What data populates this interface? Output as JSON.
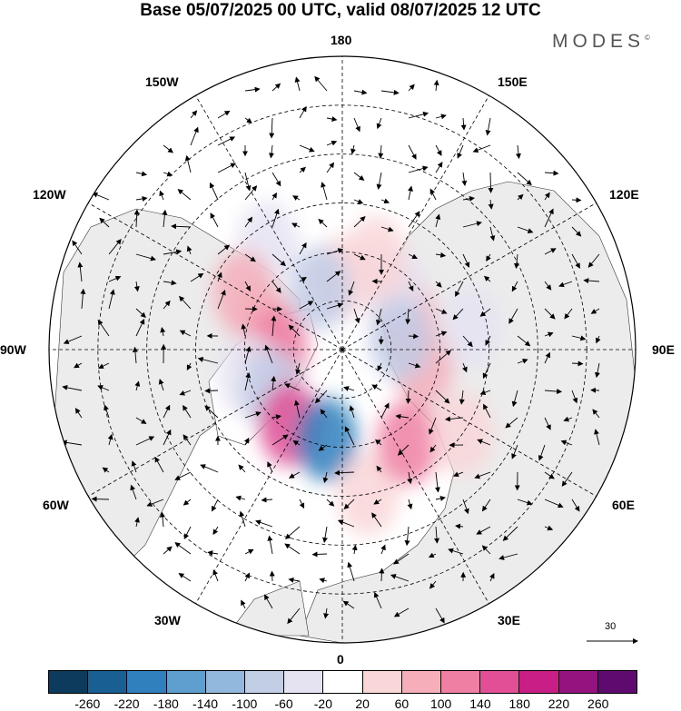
{
  "title": "Base 05/07/2025 00 UTC, valid 08/07/2025 12 UTC",
  "brand": "MODES",
  "brand_mark": "©",
  "map": {
    "projection": "north-polar-stereographic",
    "longitude_labels": {
      "180": "180",
      "150E": "150E",
      "120E": "120E",
      "90E": "90E",
      "60E": "60E",
      "30E": "30E",
      "0": "0",
      "30W": "30W",
      "60W": "60W",
      "90W": "90W",
      "120W": "120W",
      "150W": "150W"
    },
    "grid": true,
    "land_color": "#ececec",
    "ocean_color": "#ffffff",
    "wind_vectors": true,
    "reference_vector_label": "30"
  },
  "colorbar": {
    "colors": [
      "#0d3b5e",
      "#1a5f93",
      "#2f80bd",
      "#5e9fcf",
      "#92b9dd",
      "#c2cde6",
      "#e5e3f1",
      "#ffffff",
      "#f9d6d8",
      "#f5aeba",
      "#ef7fa3",
      "#e24f96",
      "#c81e85",
      "#94137e",
      "#5e0a6e"
    ],
    "ticks": [
      "-260",
      "-220",
      "-180",
      "-140",
      "-100",
      "-60",
      "-20",
      "20",
      "60",
      "100",
      "140",
      "180",
      "220",
      "260"
    ]
  },
  "anomalies": [
    {
      "lon": 180,
      "lat": 68,
      "v": 30
    },
    {
      "lon": 200,
      "lat": 70,
      "v": -80
    },
    {
      "lon": 215,
      "lat": 50,
      "v": -60
    },
    {
      "lon": 240,
      "lat": 55,
      "v": 60
    },
    {
      "lon": 255,
      "lat": 65,
      "v": 90
    },
    {
      "lon": 270,
      "lat": 70,
      "v": 110
    },
    {
      "lon": 285,
      "lat": 60,
      "v": -60
    },
    {
      "lon": 300,
      "lat": 65,
      "v": -90
    },
    {
      "lon": 325,
      "lat": 62,
      "v": 140
    },
    {
      "lon": 350,
      "lat": 62,
      "v": -190
    },
    {
      "lon": 10,
      "lat": 45,
      "v": 40
    },
    {
      "lon": 35,
      "lat": 55,
      "v": 120
    },
    {
      "lon": 55,
      "lat": 45,
      "v": 50
    },
    {
      "lon": 80,
      "lat": 65,
      "v": 90
    },
    {
      "lon": 100,
      "lat": 50,
      "v": -60
    },
    {
      "lon": 120,
      "lat": 68,
      "v": 80
    },
    {
      "lon": 140,
      "lat": 65,
      "v": -60
    },
    {
      "lon": 100,
      "lat": 72,
      "v": -70
    },
    {
      "lon": 160,
      "lat": 60,
      "v": 30
    }
  ]
}
